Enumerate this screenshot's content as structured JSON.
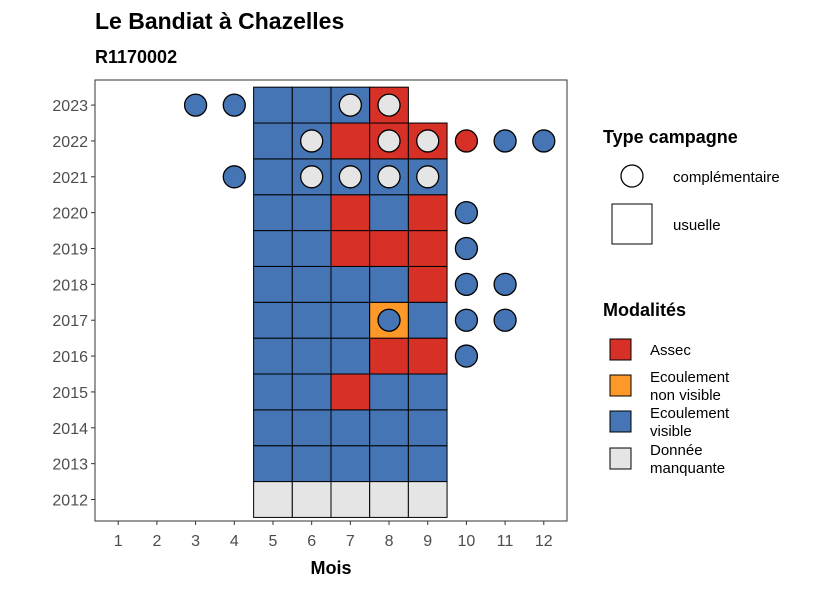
{
  "chart_data": {
    "type": "heatmap",
    "title": "Le Bandiat à Chazelles",
    "subtitle": "R1170002",
    "xlabel": "Mois",
    "ylabel": "",
    "x_ticks": [
      "1",
      "2",
      "3",
      "4",
      "5",
      "6",
      "7",
      "8",
      "9",
      "10",
      "11",
      "12"
    ],
    "y_ticks": [
      "2012",
      "2013",
      "2014",
      "2015",
      "2016",
      "2017",
      "2018",
      "2019",
      "2020",
      "2021",
      "2022",
      "2023"
    ],
    "grid": false,
    "colors": {
      "assec": "#d73027",
      "ecoulement_non_visible": "#fe9929",
      "ecoulement_visible": "#4575b4",
      "donnee_manquante": "#e5e5e5"
    },
    "legend_shape": {
      "title": "Type campagne",
      "placement": "right",
      "items": [
        {
          "key": "complementaire",
          "label": "complémentaire",
          "shape": "circle"
        },
        {
          "key": "usuelle",
          "label": "usuelle",
          "shape": "square"
        }
      ]
    },
    "legend_fill": {
      "title": "Modalités",
      "placement": "right",
      "items": [
        {
          "key": "assec",
          "lines": [
            "Assec"
          ]
        },
        {
          "key": "ecoulement_non_visible",
          "lines": [
            "Ecoulement",
            "non visible"
          ]
        },
        {
          "key": "ecoulement_visible",
          "lines": [
            "Ecoulement",
            "visible"
          ]
        },
        {
          "key": "donnee_manquante",
          "lines": [
            "Donnée",
            "manquante"
          ]
        }
      ]
    },
    "usuelle": [
      {
        "year": 2012,
        "months": {
          "5": "donnee_manquante",
          "6": "donnee_manquante",
          "7": "donnee_manquante",
          "8": "donnee_manquante",
          "9": "donnee_manquante"
        }
      },
      {
        "year": 2013,
        "months": {
          "5": "ecoulement_visible",
          "6": "ecoulement_visible",
          "7": "ecoulement_visible",
          "8": "ecoulement_visible",
          "9": "ecoulement_visible"
        }
      },
      {
        "year": 2014,
        "months": {
          "5": "ecoulement_visible",
          "6": "ecoulement_visible",
          "7": "ecoulement_visible",
          "8": "ecoulement_visible",
          "9": "ecoulement_visible"
        }
      },
      {
        "year": 2015,
        "months": {
          "5": "ecoulement_visible",
          "6": "ecoulement_visible",
          "7": "assec",
          "8": "ecoulement_visible",
          "9": "ecoulement_visible"
        }
      },
      {
        "year": 2016,
        "months": {
          "5": "ecoulement_visible",
          "6": "ecoulement_visible",
          "7": "ecoulement_visible",
          "8": "assec",
          "9": "assec"
        }
      },
      {
        "year": 2017,
        "months": {
          "5": "ecoulement_visible",
          "6": "ecoulement_visible",
          "7": "ecoulement_visible",
          "8": "ecoulement_non_visible",
          "9": "ecoulement_visible"
        }
      },
      {
        "year": 2018,
        "months": {
          "5": "ecoulement_visible",
          "6": "ecoulement_visible",
          "7": "ecoulement_visible",
          "8": "ecoulement_visible",
          "9": "assec"
        }
      },
      {
        "year": 2019,
        "months": {
          "5": "ecoulement_visible",
          "6": "ecoulement_visible",
          "7": "assec",
          "8": "assec",
          "9": "assec"
        }
      },
      {
        "year": 2020,
        "months": {
          "5": "ecoulement_visible",
          "6": "ecoulement_visible",
          "7": "assec",
          "8": "ecoulement_visible",
          "9": "assec"
        }
      },
      {
        "year": 2021,
        "months": {
          "5": "ecoulement_visible",
          "6": "ecoulement_visible",
          "7": "ecoulement_visible",
          "8": "ecoulement_visible",
          "9": "ecoulement_visible"
        }
      },
      {
        "year": 2022,
        "months": {
          "5": "ecoulement_visible",
          "6": "ecoulement_visible",
          "7": "assec",
          "8": "assec",
          "9": "assec"
        }
      },
      {
        "year": 2023,
        "months": {
          "5": "ecoulement_visible",
          "6": "ecoulement_visible",
          "7": "ecoulement_visible",
          "8": "assec"
        }
      }
    ],
    "complementaire": [
      {
        "year": 2016,
        "month": 10,
        "value": "ecoulement_visible"
      },
      {
        "year": 2017,
        "month": 8,
        "value": "ecoulement_visible"
      },
      {
        "year": 2017,
        "month": 10,
        "value": "ecoulement_visible"
      },
      {
        "year": 2017,
        "month": 11,
        "value": "ecoulement_visible"
      },
      {
        "year": 2018,
        "month": 10,
        "value": "ecoulement_visible"
      },
      {
        "year": 2018,
        "month": 11,
        "value": "ecoulement_visible"
      },
      {
        "year": 2019,
        "month": 10,
        "value": "ecoulement_visible"
      },
      {
        "year": 2020,
        "month": 10,
        "value": "ecoulement_visible"
      },
      {
        "year": 2021,
        "month": 4,
        "value": "ecoulement_visible"
      },
      {
        "year": 2021,
        "month": 6,
        "value": "donnee_manquante"
      },
      {
        "year": 2021,
        "month": 7,
        "value": "donnee_manquante"
      },
      {
        "year": 2021,
        "month": 8,
        "value": "donnee_manquante"
      },
      {
        "year": 2021,
        "month": 9,
        "value": "donnee_manquante"
      },
      {
        "year": 2022,
        "month": 6,
        "value": "donnee_manquante"
      },
      {
        "year": 2022,
        "month": 8,
        "value": "donnee_manquante"
      },
      {
        "year": 2022,
        "month": 9,
        "value": "donnee_manquante"
      },
      {
        "year": 2022,
        "month": 10,
        "value": "assec"
      },
      {
        "year": 2022,
        "month": 11,
        "value": "ecoulement_visible"
      },
      {
        "year": 2022,
        "month": 12,
        "value": "ecoulement_visible"
      },
      {
        "year": 2023,
        "month": 3,
        "value": "ecoulement_visible"
      },
      {
        "year": 2023,
        "month": 4,
        "value": "ecoulement_visible"
      },
      {
        "year": 2023,
        "month": 7,
        "value": "donnee_manquante"
      },
      {
        "year": 2023,
        "month": 8,
        "value": "donnee_manquante"
      }
    ]
  }
}
